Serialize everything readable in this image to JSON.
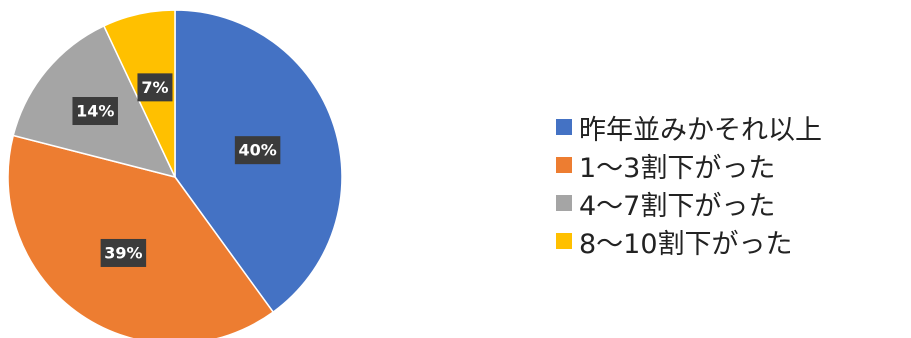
{
  "chart_data": {
    "type": "pie",
    "title": "",
    "legend_position": "right",
    "start_angle": "12 o'clock",
    "direction": "clockwise",
    "slices": [
      {
        "label": "昨年並みかそれ以上",
        "value": 40,
        "display": "40%",
        "color": "#4472C4"
      },
      {
        "label": "1～3割下がった",
        "value": 39,
        "display": "39%",
        "color": "#ED7D31"
      },
      {
        "label": "4～7割下がった",
        "value": 14,
        "display": "14%",
        "color": "#A5A5A5"
      },
      {
        "label": "8～10割下がった",
        "value": 7,
        "display": "7%",
        "color": "#FFC000"
      }
    ]
  }
}
